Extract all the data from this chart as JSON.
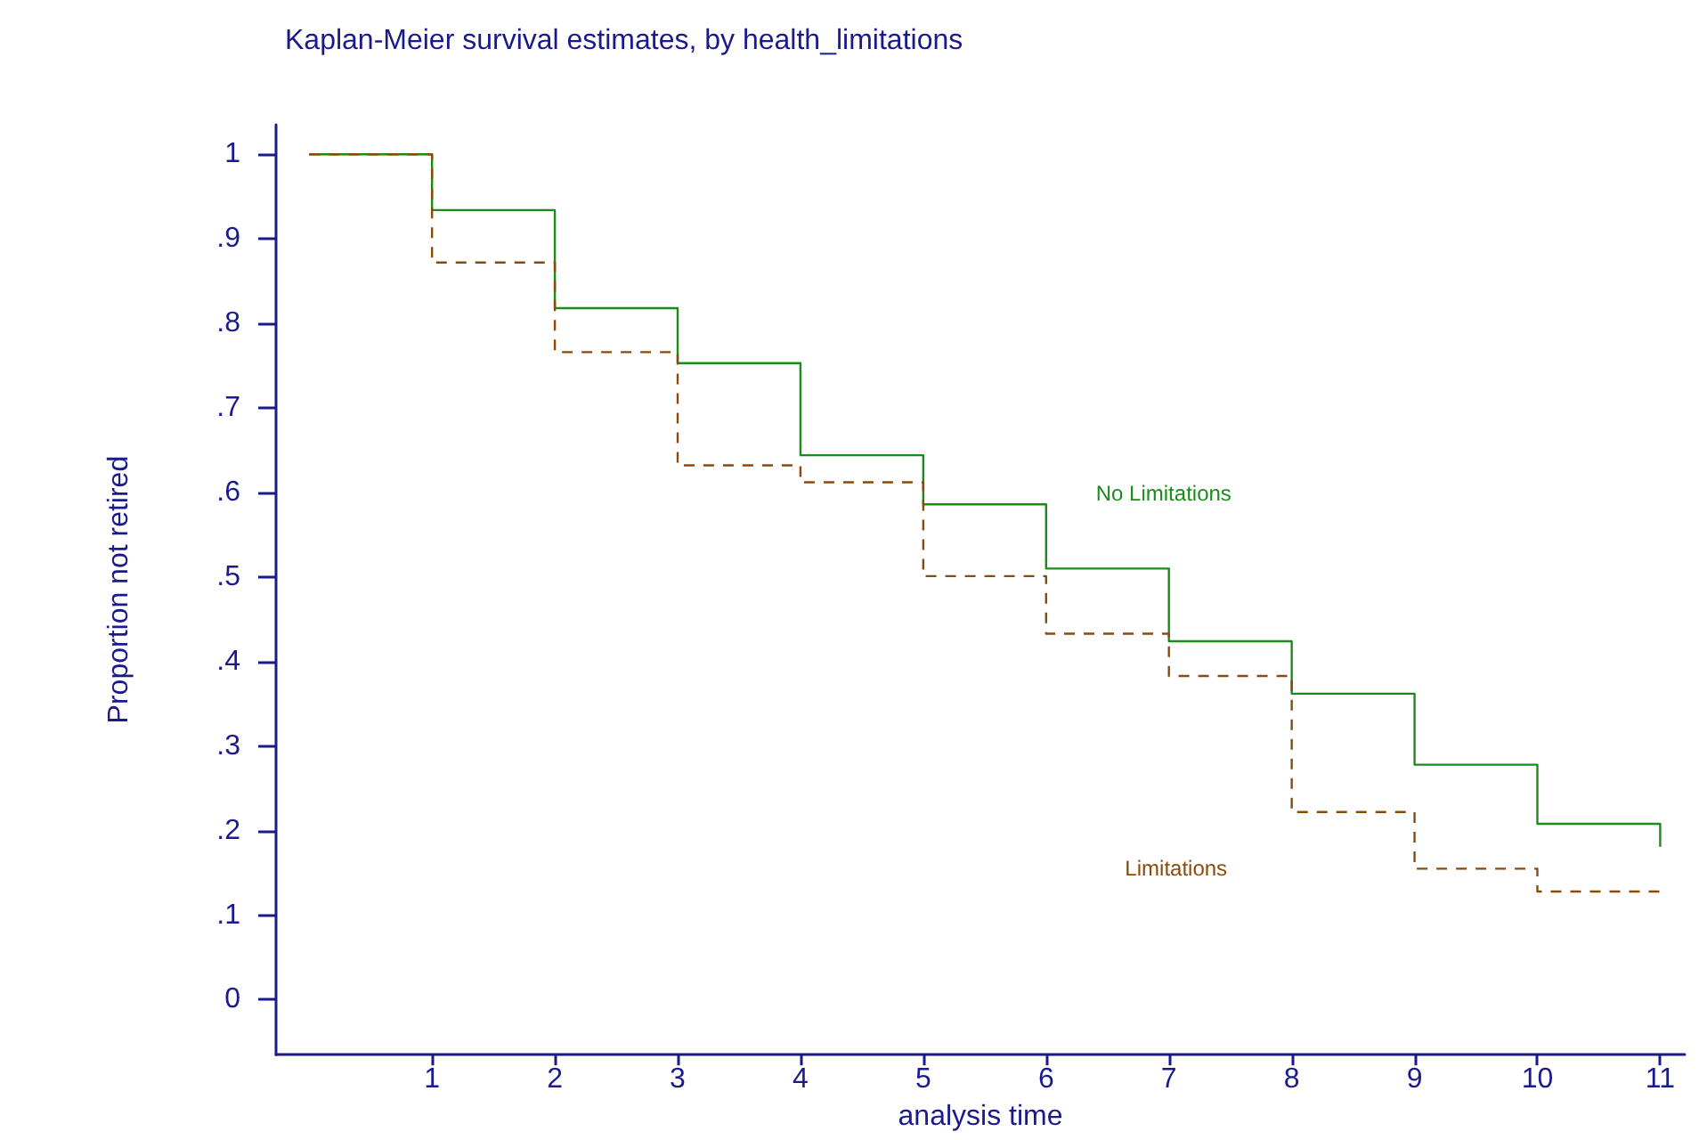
{
  "chart_data": {
    "type": "step",
    "title": "Kaplan-Meier survival estimates, by health_limitations",
    "xlabel": "analysis time",
    "ylabel": "Proportion not retired",
    "series": [
      {
        "name": "No Limitations",
        "color": "#1a8c1a",
        "line_style": "solid",
        "x": [
          0,
          1,
          2,
          3,
          4,
          5,
          6,
          7,
          8,
          9,
          10,
          11,
          11
        ],
        "values": [
          1,
          0.934,
          0.818,
          0.753,
          0.644,
          0.586,
          0.51,
          0.424,
          0.362,
          0.278,
          0.208,
          0.208,
          0.181
        ]
      },
      {
        "name": "Limitations",
        "color": "#8c4a0a",
        "line_style": "dashed",
        "x": [
          0,
          1,
          2,
          3,
          4,
          5,
          6,
          7,
          8,
          9,
          10,
          11
        ],
        "values": [
          1,
          0.872,
          0.766,
          0.632,
          0.612,
          0.501,
          0.433,
          0.383,
          0.222,
          0.155,
          0.128,
          0.128
        ]
      }
    ],
    "xlim": [
      -0.27,
      11.2
    ],
    "xticks": [
      1,
      2,
      3,
      4,
      5,
      6,
      7,
      8,
      9,
      10,
      11
    ],
    "ylim": [
      -0.065,
      1.035
    ],
    "yticks": [
      {
        "value": 0,
        "label": "0"
      },
      {
        "value": 0.1,
        "label": ".1"
      },
      {
        "value": 0.2,
        "label": ".2"
      },
      {
        "value": 0.3,
        "label": ".3"
      },
      {
        "value": 0.4,
        "label": ".4"
      },
      {
        "value": 0.5,
        "label": ".5"
      },
      {
        "value": 0.6,
        "label": ".6"
      },
      {
        "value": 0.7,
        "label": ".7"
      },
      {
        "value": 0.8,
        "label": ".8"
      },
      {
        "value": 0.9,
        "label": ".9"
      },
      {
        "value": 1,
        "label": "1"
      }
    ],
    "grid": false,
    "marker": "none"
  }
}
